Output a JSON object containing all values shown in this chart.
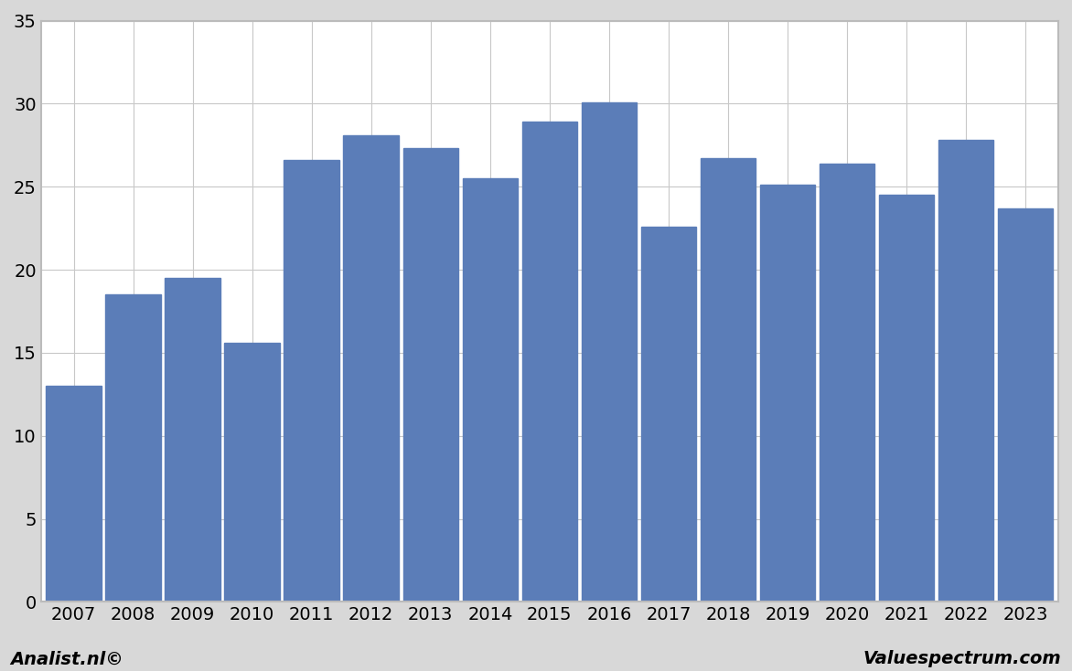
{
  "years": [
    2007,
    2008,
    2009,
    2010,
    2011,
    2012,
    2013,
    2014,
    2015,
    2016,
    2017,
    2018,
    2019,
    2020,
    2021,
    2022,
    2023
  ],
  "values": [
    13.0,
    18.5,
    19.5,
    15.6,
    26.6,
    28.1,
    27.3,
    25.5,
    28.9,
    30.1,
    22.6,
    26.7,
    25.1,
    26.4,
    24.5,
    27.8,
    23.7
  ],
  "bar_color": "#5b7db8",
  "background_color": "#d8d8d8",
  "plot_background": "#ffffff",
  "ylim": [
    0,
    35
  ],
  "yticks": [
    0,
    5,
    10,
    15,
    20,
    25,
    30,
    35
  ],
  "grid_color": "#c8c8c8",
  "footer_left": "Analist.nl©",
  "footer_right": "Valuespectrum.com",
  "footer_fontsize": 14,
  "tick_fontsize": 14,
  "bar_width": 0.93,
  "border_color": "#bbbbbb",
  "spine_color": "#bbbbbb"
}
